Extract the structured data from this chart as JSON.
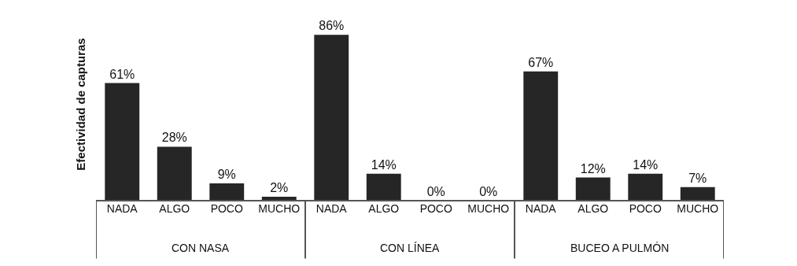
{
  "chart_data": {
    "type": "bar",
    "ylabel": "Efectividad de capturas",
    "categories": [
      "NADA",
      "ALGO",
      "POCO",
      "MUCHO",
      "NADA",
      "ALGO",
      "POCO",
      "MUCHO",
      "NADA",
      "ALGO",
      "POCO",
      "MUCHO"
    ],
    "values": [
      61,
      28,
      9,
      2,
      86,
      14,
      0,
      0,
      67,
      12,
      14,
      7
    ],
    "value_labels": [
      "61%",
      "28%",
      "9%",
      "2%",
      "86%",
      "14%",
      "0%",
      "0%",
      "67%",
      "12%",
      "14%",
      "7%"
    ],
    "color": "#262626",
    "annotations": [
      "CON NASA",
      "CON LÍNEA",
      "BUCEO A PULMÓN"
    ],
    "grid": false,
    "legend": false
  }
}
